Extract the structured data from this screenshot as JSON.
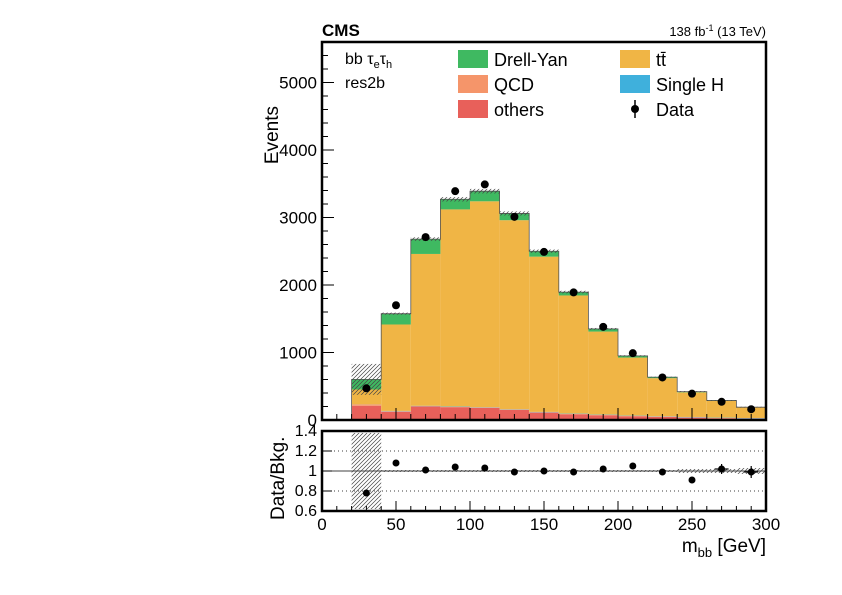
{
  "header": {
    "experiment": "CMS",
    "lumi_main": "138 fb",
    "lumi_sup": "-1",
    "lumi_tail": " (13 TeV)"
  },
  "labels": {
    "channel_prefix": "bb τ",
    "channel_sub1": "e",
    "channel_mid": "τ",
    "channel_sub2": "h",
    "category": "res2b"
  },
  "colors": {
    "others": "#e8605a",
    "qcd": "#f5956a",
    "single_h": "#3fb0dc",
    "ttbar": "#f0b545",
    "drell_yan": "#3fb961",
    "data": "#000000"
  },
  "chart_data": [
    {
      "type": "bar",
      "stacked": true,
      "title": "",
      "xlabel": "",
      "ylabel": "Events",
      "xlim": [
        0,
        300
      ],
      "ylim": [
        0,
        5600
      ],
      "x_ticks": [
        0,
        50,
        100,
        150,
        200,
        250,
        300
      ],
      "y_ticks": [
        0,
        1000,
        2000,
        3000,
        4000,
        5000
      ],
      "y_tick_labels": [
        "0",
        "1000",
        "2000",
        "3000",
        "4000",
        "5000"
      ],
      "legend_position": "top",
      "bin_edges": [
        0,
        20,
        40,
        60,
        80,
        100,
        120,
        140,
        160,
        180,
        200,
        220,
        240,
        260,
        280,
        300
      ],
      "series": [
        {
          "name": "others",
          "color_key": "others",
          "values": [
            0,
            210,
            120,
            200,
            190,
            180,
            150,
            110,
            85,
            70,
            55,
            45,
            35,
            25,
            20
          ]
        },
        {
          "name": "QCD",
          "color_key": "qcd",
          "values": [
            0,
            20,
            10,
            5,
            5,
            5,
            5,
            5,
            5,
            5,
            5,
            5,
            5,
            5,
            5
          ]
        },
        {
          "name": "Single H",
          "color_key": "single_h",
          "values": [
            0,
            2,
            5,
            5,
            5,
            5,
            5,
            5,
            5,
            5,
            5,
            5,
            5,
            5,
            5
          ]
        },
        {
          "name": "tt̄",
          "color_key": "ttbar",
          "values": [
            0,
            220,
            1280,
            2250,
            2920,
            3050,
            2800,
            2300,
            1750,
            1230,
            860,
            565,
            365,
            250,
            155
          ]
        },
        {
          "name": "Drell-Yan",
          "color_key": "drell_yan",
          "values": [
            0,
            150,
            160,
            220,
            150,
            150,
            100,
            80,
            50,
            40,
            25,
            15,
            10,
            5,
            5
          ]
        }
      ],
      "data": {
        "name": "Data",
        "x": [
          30,
          50,
          70,
          90,
          110,
          130,
          150,
          170,
          190,
          210,
          230,
          250,
          270,
          290
        ],
        "y": [
          470,
          1700,
          2710,
          3390,
          3490,
          3010,
          2490,
          1890,
          1380,
          990,
          630,
          390,
          270,
          160
        ]
      }
    },
    {
      "type": "scatter",
      "title": "",
      "xlabel": "m_bb [GeV]",
      "ylabel": "Data/Bkg.",
      "xlim": [
        0,
        300
      ],
      "ylim": [
        0.6,
        1.4
      ],
      "x_ticks": [
        0,
        50,
        100,
        150,
        200,
        250,
        300
      ],
      "x_tick_labels": [
        "0",
        "50",
        "100",
        "150",
        "200",
        "250",
        "300"
      ],
      "y_ticks": [
        0.6,
        0.8,
        1.0,
        1.2,
        1.4
      ],
      "y_tick_labels": [
        "0.6",
        "0.8",
        "1",
        "1.2",
        "1.4"
      ],
      "grid_y": [
        0.8,
        1.0,
        1.2
      ],
      "x": [
        30,
        50,
        70,
        90,
        110,
        130,
        150,
        170,
        190,
        210,
        230,
        250,
        270,
        290
      ],
      "ratio": [
        0.78,
        1.08,
        1.01,
        1.04,
        1.03,
        0.99,
        1.0,
        0.99,
        1.02,
        1.05,
        0.99,
        0.91,
        1.02,
        0.99
      ],
      "ratio_err": [
        0,
        0,
        0,
        0,
        0,
        0,
        0,
        0,
        0,
        0,
        0,
        0,
        0.05,
        0.06
      ],
      "band_err": [
        0,
        0.38,
        0.01,
        0.01,
        0.01,
        0.01,
        0.01,
        0.01,
        0.01,
        0.01,
        0.01,
        0.01,
        0.02,
        0.02,
        0.03
      ]
    }
  ],
  "xaxis_label": {
    "main": "m",
    "sub": "bb",
    "unit": " [GeV]"
  }
}
